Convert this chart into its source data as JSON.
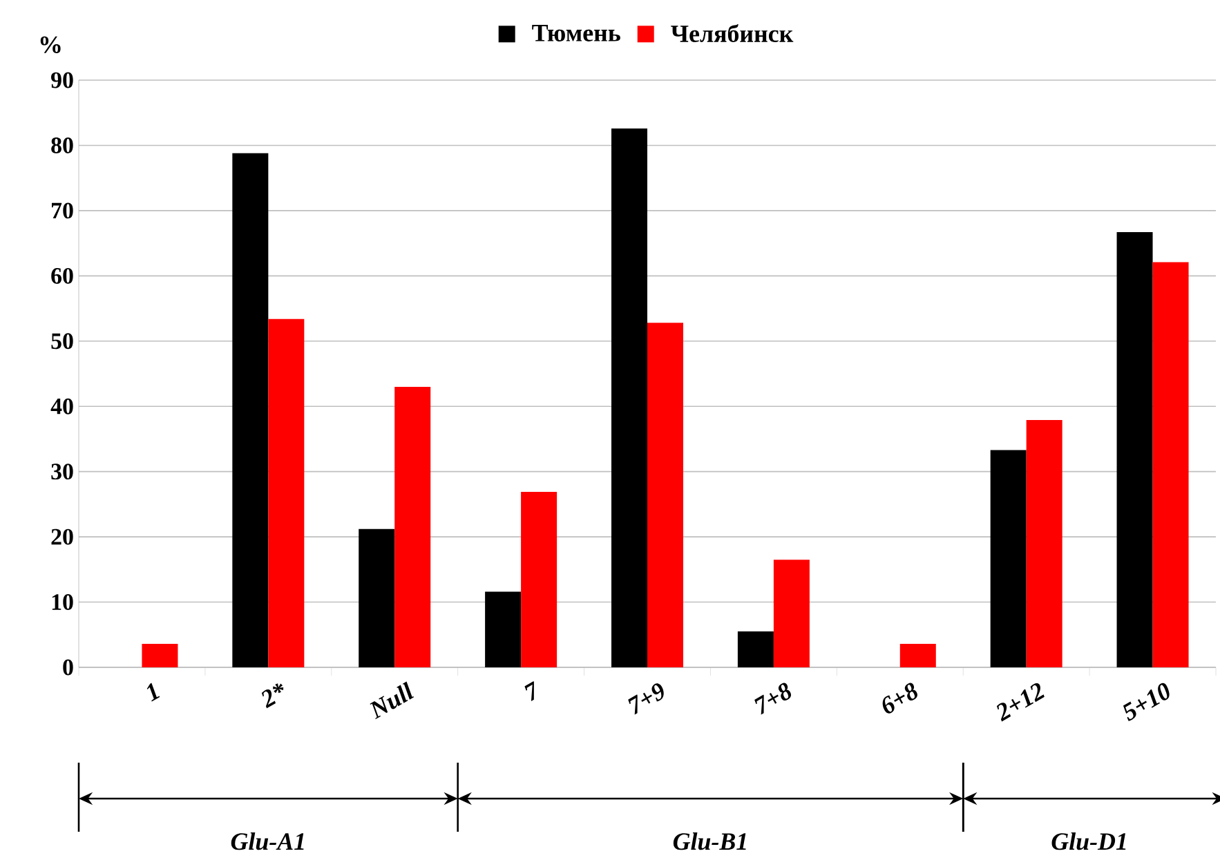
{
  "chart_data": {
    "type": "bar",
    "ylabel": "%",
    "categories": [
      "1",
      "2*",
      "Null",
      "7",
      "7+9",
      "7+8",
      "6+8",
      "2+12",
      "5+10"
    ],
    "series": [
      {
        "name": "Тюмень",
        "color": "#000000",
        "values": [
          0,
          78.8,
          21.2,
          11.6,
          82.6,
          5.5,
          0,
          33.3,
          66.7
        ]
      },
      {
        "name": "Челябинск",
        "color": "#ff0000",
        "values": [
          3.6,
          53.4,
          43.0,
          26.9,
          52.8,
          16.5,
          3.6,
          37.9,
          62.1
        ]
      }
    ],
    "ylim": [
      0,
      90
    ],
    "yticks": [
      0,
      10,
      20,
      30,
      40,
      50,
      60,
      70,
      80,
      90
    ],
    "grid": "y",
    "legend": "top",
    "annotations": [
      "Glu-A1",
      "Glu-B1",
      "Glu-D1"
    ]
  }
}
